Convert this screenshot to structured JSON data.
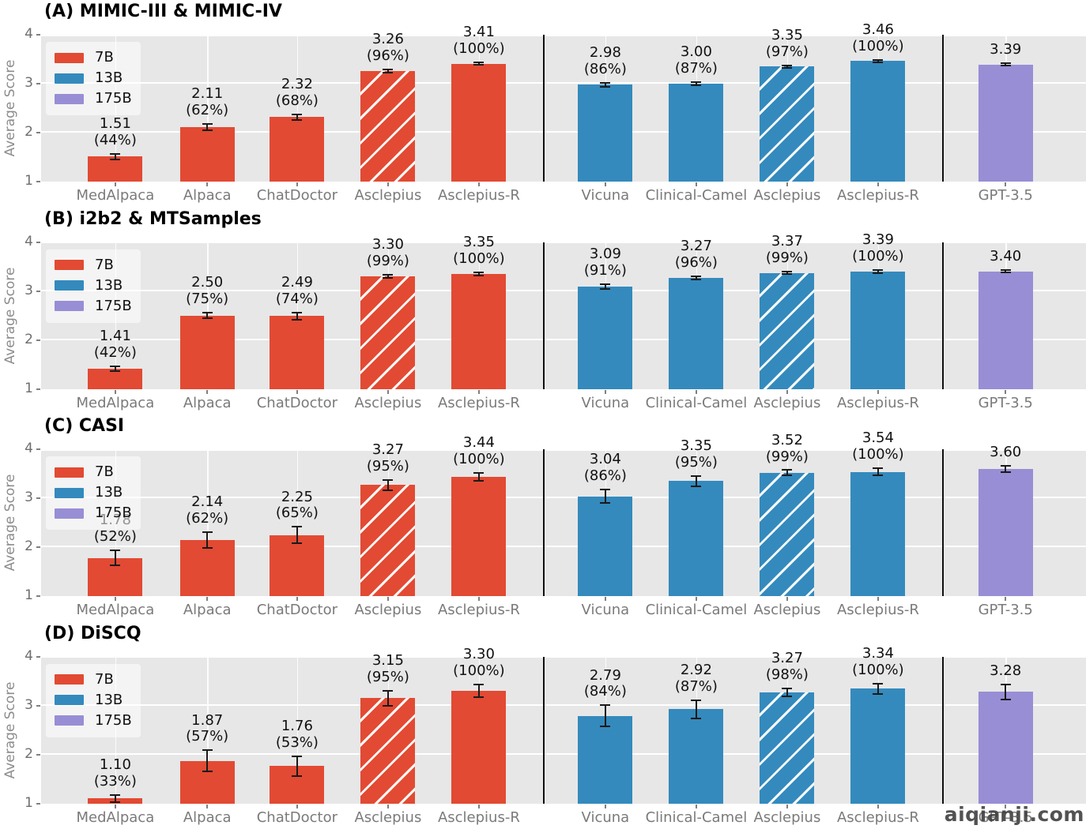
{
  "watermark": "aiqianji.com",
  "palette": {
    "7B": "#E24A33",
    "13B": "#348ABD",
    "175B": "#988ED5",
    "plot_bg": "#E7E7E7",
    "grid": "#FFFFFF",
    "tick_text": "#6E6E6E",
    "axis_label_text": "#8C8C8C",
    "bar_label_text": "#111111",
    "separator": "#101010"
  },
  "legend": {
    "entries": [
      {
        "label": "7B",
        "color": "#E24A33"
      },
      {
        "label": "13B",
        "color": "#348ABD"
      },
      {
        "label": "175B",
        "color": "#988ED5"
      }
    ]
  },
  "chart_data": [
    {
      "type": "bar",
      "title": "(A) MIMIC-III & MIMIC-IV",
      "ylabel": "Average Score",
      "ylim": [
        1,
        4
      ],
      "yticks": [
        1,
        2,
        3,
        4
      ],
      "grid": true,
      "legend_position": "upper-left",
      "categories": [
        "MedAlpaca",
        "Alpaca",
        "ChatDoctor",
        "Asclepius",
        "Asclepius-R",
        "Vicuna",
        "Clinical-Camel",
        "Asclepius",
        "Asclepius-R",
        "GPT-3.5"
      ],
      "bars": [
        {
          "label": "MedAlpaca",
          "group": "7B",
          "value": 1.51,
          "pct": "44%",
          "err": 0.07,
          "hatch": false
        },
        {
          "label": "Alpaca",
          "group": "7B",
          "value": 2.11,
          "pct": "62%",
          "err": 0.08,
          "hatch": false
        },
        {
          "label": "ChatDoctor",
          "group": "7B",
          "value": 2.32,
          "pct": "68%",
          "err": 0.07,
          "hatch": false
        },
        {
          "label": "Asclepius",
          "group": "7B",
          "value": 3.26,
          "pct": "96%",
          "err": 0.05,
          "hatch": true
        },
        {
          "label": "Asclepius-R",
          "group": "7B",
          "value": 3.41,
          "pct": "100%",
          "err": 0.04,
          "hatch": false
        },
        {
          "label": "Vicuna",
          "group": "13B",
          "value": 2.98,
          "pct": "86%",
          "err": 0.06,
          "hatch": false
        },
        {
          "label": "Clinical-Camel",
          "group": "13B",
          "value": 3.0,
          "pct": "87%",
          "err": 0.05,
          "hatch": false
        },
        {
          "label": "Asclepius",
          "group": "13B",
          "value": 3.35,
          "pct": "97%",
          "err": 0.04,
          "hatch": true
        },
        {
          "label": "Asclepius-R",
          "group": "13B",
          "value": 3.46,
          "pct": "100%",
          "err": 0.04,
          "hatch": false
        },
        {
          "label": "GPT-3.5",
          "group": "175B",
          "value": 3.39,
          "pct": null,
          "err": 0.04,
          "hatch": false
        }
      ]
    },
    {
      "type": "bar",
      "title": "(B) i2b2 & MTSamples",
      "ylabel": "Average Score",
      "ylim": [
        1,
        4
      ],
      "yticks": [
        1,
        2,
        3,
        4
      ],
      "grid": true,
      "legend_position": "upper-left",
      "categories": [
        "MedAlpaca",
        "Alpaca",
        "ChatDoctor",
        "Asclepius",
        "Asclepius-R",
        "Vicuna",
        "Clinical-Camel",
        "Asclepius",
        "Asclepius-R",
        "GPT-3.5"
      ],
      "bars": [
        {
          "label": "MedAlpaca",
          "group": "7B",
          "value": 1.41,
          "pct": "42%",
          "err": 0.07,
          "hatch": false
        },
        {
          "label": "Alpaca",
          "group": "7B",
          "value": 2.5,
          "pct": "75%",
          "err": 0.08,
          "hatch": false
        },
        {
          "label": "ChatDoctor",
          "group": "7B",
          "value": 2.49,
          "pct": "74%",
          "err": 0.09,
          "hatch": false
        },
        {
          "label": "Asclepius",
          "group": "7B",
          "value": 3.3,
          "pct": "99%",
          "err": 0.05,
          "hatch": true
        },
        {
          "label": "Asclepius-R",
          "group": "7B",
          "value": 3.35,
          "pct": "100%",
          "err": 0.05,
          "hatch": false
        },
        {
          "label": "Vicuna",
          "group": "13B",
          "value": 3.09,
          "pct": "91%",
          "err": 0.06,
          "hatch": false
        },
        {
          "label": "Clinical-Camel",
          "group": "13B",
          "value": 3.27,
          "pct": "96%",
          "err": 0.05,
          "hatch": false
        },
        {
          "label": "Asclepius",
          "group": "13B",
          "value": 3.37,
          "pct": "99%",
          "err": 0.04,
          "hatch": true
        },
        {
          "label": "Asclepius-R",
          "group": "13B",
          "value": 3.39,
          "pct": "100%",
          "err": 0.05,
          "hatch": false
        },
        {
          "label": "GPT-3.5",
          "group": "175B",
          "value": 3.4,
          "pct": null,
          "err": 0.04,
          "hatch": false
        }
      ]
    },
    {
      "type": "bar",
      "title": "(C) CASI",
      "ylabel": "Average Score",
      "ylim": [
        1,
        4
      ],
      "yticks": [
        1,
        2,
        3,
        4
      ],
      "grid": true,
      "legend_position": "upper-left",
      "categories": [
        "MedAlpaca",
        "Alpaca",
        "ChatDoctor",
        "Asclepius",
        "Asclepius-R",
        "Vicuna",
        "Clinical-Camel",
        "Asclepius",
        "Asclepius-R",
        "GPT-3.5"
      ],
      "bars": [
        {
          "label": "MedAlpaca",
          "group": "7B",
          "value": 1.78,
          "pct": "52%",
          "err": 0.17,
          "hatch": false
        },
        {
          "label": "Alpaca",
          "group": "7B",
          "value": 2.14,
          "pct": "62%",
          "err": 0.18,
          "hatch": false
        },
        {
          "label": "ChatDoctor",
          "group": "7B",
          "value": 2.25,
          "pct": "65%",
          "err": 0.18,
          "hatch": false
        },
        {
          "label": "Asclepius",
          "group": "7B",
          "value": 3.27,
          "pct": "95%",
          "err": 0.12,
          "hatch": true
        },
        {
          "label": "Asclepius-R",
          "group": "7B",
          "value": 3.44,
          "pct": "100%",
          "err": 0.1,
          "hatch": false
        },
        {
          "label": "Vicuna",
          "group": "13B",
          "value": 3.04,
          "pct": "86%",
          "err": 0.15,
          "hatch": false
        },
        {
          "label": "Clinical-Camel",
          "group": "13B",
          "value": 3.35,
          "pct": "95%",
          "err": 0.12,
          "hatch": false
        },
        {
          "label": "Asclepius",
          "group": "13B",
          "value": 3.52,
          "pct": "99%",
          "err": 0.07,
          "hatch": true
        },
        {
          "label": "Asclepius-R",
          "group": "13B",
          "value": 3.54,
          "pct": "100%",
          "err": 0.09,
          "hatch": false
        },
        {
          "label": "GPT-3.5",
          "group": "175B",
          "value": 3.6,
          "pct": null,
          "err": 0.08,
          "hatch": false
        }
      ]
    },
    {
      "type": "bar",
      "title": "(D) DiSCQ",
      "ylabel": "Average Score",
      "ylim": [
        1,
        4
      ],
      "yticks": [
        1,
        2,
        3,
        4
      ],
      "grid": true,
      "legend_position": "upper-left",
      "categories": [
        "MedAlpaca",
        "Alpaca",
        "ChatDoctor",
        "Asclepius",
        "Asclepius-R",
        "Vicuna",
        "Clinical-Camel",
        "Asclepius",
        "Asclepius-R",
        "GPT-3.5"
      ],
      "bars": [
        {
          "label": "MedAlpaca",
          "group": "7B",
          "value": 1.1,
          "pct": "33%",
          "err": 0.09,
          "hatch": false
        },
        {
          "label": "Alpaca",
          "group": "7B",
          "value": 1.87,
          "pct": "57%",
          "err": 0.23,
          "hatch": false
        },
        {
          "label": "ChatDoctor",
          "group": "7B",
          "value": 1.76,
          "pct": "53%",
          "err": 0.22,
          "hatch": false
        },
        {
          "label": "Asclepius",
          "group": "7B",
          "value": 3.15,
          "pct": "95%",
          "err": 0.17,
          "hatch": true
        },
        {
          "label": "Asclepius-R",
          "group": "7B",
          "value": 3.3,
          "pct": "100%",
          "err": 0.15,
          "hatch": false
        },
        {
          "label": "Vicuna",
          "group": "13B",
          "value": 2.79,
          "pct": "84%",
          "err": 0.23,
          "hatch": false
        },
        {
          "label": "Clinical-Camel",
          "group": "13B",
          "value": 2.92,
          "pct": "87%",
          "err": 0.2,
          "hatch": false
        },
        {
          "label": "Asclepius",
          "group": "13B",
          "value": 3.27,
          "pct": "98%",
          "err": 0.1,
          "hatch": true
        },
        {
          "label": "Asclepius-R",
          "group": "13B",
          "value": 3.34,
          "pct": "100%",
          "err": 0.12,
          "hatch": false
        },
        {
          "label": "GPT-3.5",
          "group": "175B",
          "value": 3.28,
          "pct": null,
          "err": 0.17,
          "hatch": false
        }
      ]
    }
  ]
}
